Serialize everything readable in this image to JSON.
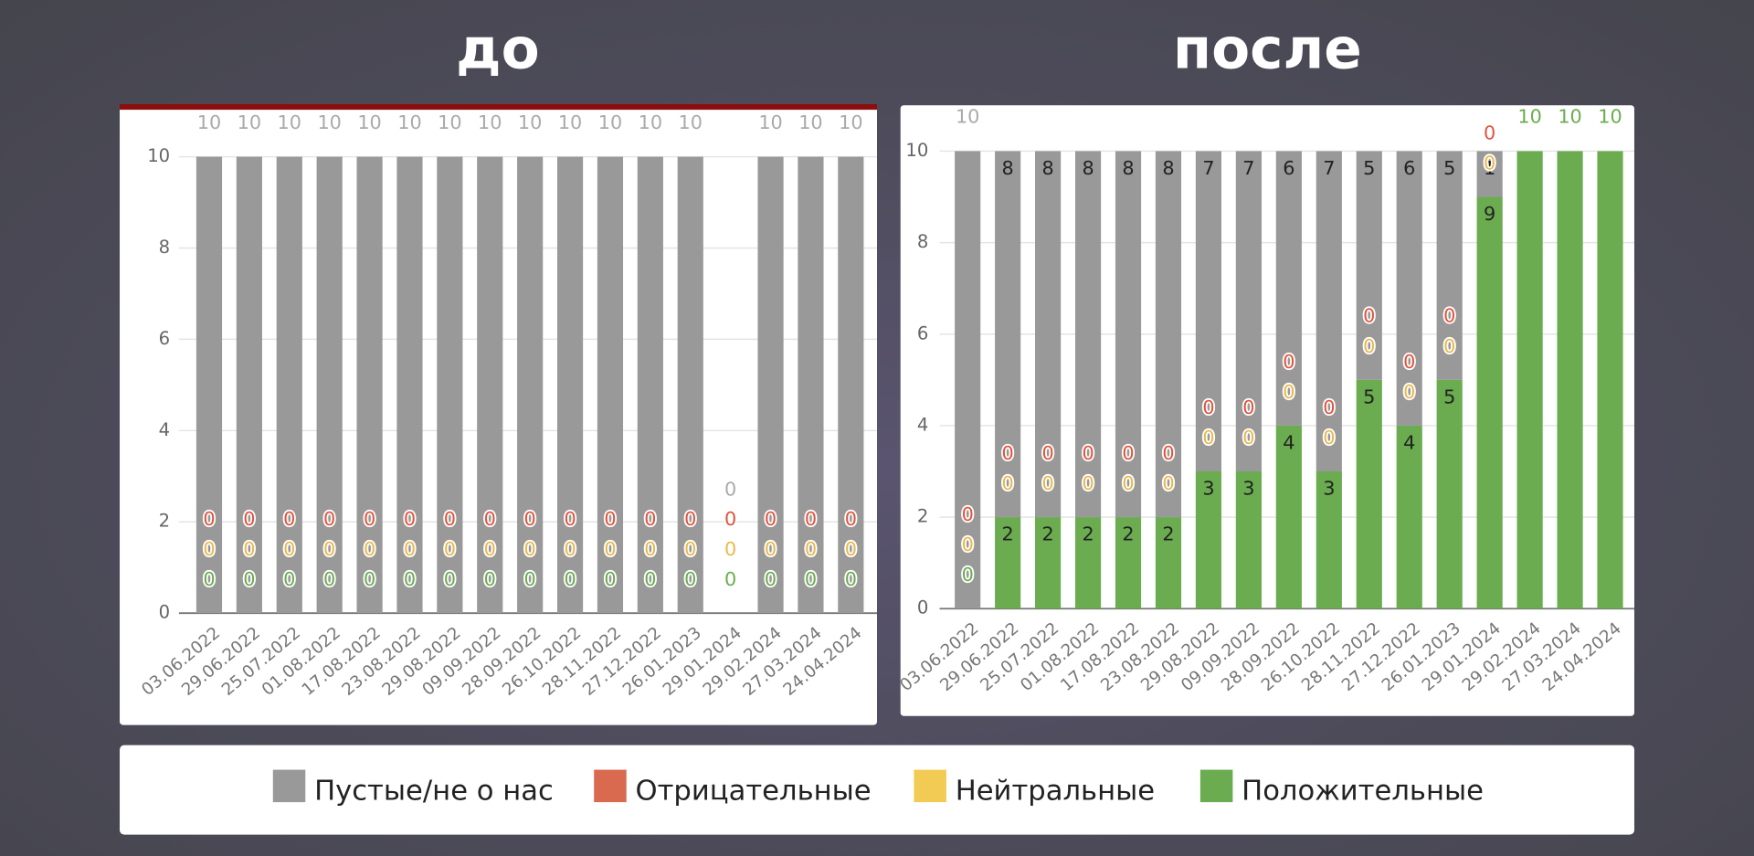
{
  "chart_data": [
    {
      "type": "stacked_bar",
      "title": "до",
      "categories": [
        "03.06.2022",
        "29.06.2022",
        "25.07.2022",
        "01.08.2022",
        "17.08.2022",
        "23.08.2022",
        "29.08.2022",
        "09.09.2022",
        "28.09.2022",
        "26.10.2022",
        "28.11.2022",
        "27.12.2022",
        "26.01.2023",
        "29.01.2024",
        "29.02.2024",
        "27.03.2024",
        "24.04.2024"
      ],
      "series": [
        {
          "name": "Пустые/не о нас",
          "color": "#999999",
          "values": [
            10,
            10,
            10,
            10,
            10,
            10,
            10,
            10,
            10,
            10,
            10,
            10,
            10,
            0,
            10,
            10,
            10
          ]
        },
        {
          "name": "Отрицательные",
          "color": "#d9694f",
          "values": [
            0,
            0,
            0,
            0,
            0,
            0,
            0,
            0,
            0,
            0,
            0,
            0,
            0,
            0,
            0,
            0,
            0
          ]
        },
        {
          "name": "Нейтральные",
          "color": "#f2cb55",
          "values": [
            0,
            0,
            0,
            0,
            0,
            0,
            0,
            0,
            0,
            0,
            0,
            0,
            0,
            0,
            0,
            0,
            0
          ]
        },
        {
          "name": "Положительные",
          "color": "#6aac4f",
          "values": [
            0,
            0,
            0,
            0,
            0,
            0,
            0,
            0,
            0,
            0,
            0,
            0,
            0,
            0,
            0,
            0,
            0
          ]
        }
      ],
      "ylim": [
        0,
        10
      ],
      "yticks": [
        0,
        2,
        4,
        6,
        8,
        10
      ],
      "grid": true
    },
    {
      "type": "stacked_bar",
      "title": "после",
      "categories": [
        "03.06.2022",
        "29.06.2022",
        "25.07.2022",
        "01.08.2022",
        "17.08.2022",
        "23.08.2022",
        "29.08.2022",
        "09.09.2022",
        "28.09.2022",
        "26.10.2022",
        "28.11.2022",
        "27.12.2022",
        "26.01.2023",
        "29.01.2024",
        "29.02.2024",
        "27.03.2024",
        "24.04.2024"
      ],
      "series": [
        {
          "name": "Пустые/не о нас",
          "color": "#999999",
          "values": [
            10,
            8,
            8,
            8,
            8,
            8,
            7,
            7,
            6,
            7,
            5,
            6,
            5,
            1,
            0,
            0,
            0
          ]
        },
        {
          "name": "Отрицательные",
          "color": "#d9694f",
          "values": [
            0,
            0,
            0,
            0,
            0,
            0,
            0,
            0,
            0,
            0,
            0,
            0,
            0,
            0,
            0,
            0,
            0
          ]
        },
        {
          "name": "Нейтральные",
          "color": "#f2cb55",
          "values": [
            0,
            0,
            0,
            0,
            0,
            0,
            0,
            0,
            0,
            0,
            0,
            0,
            0,
            0,
            0,
            0,
            0
          ]
        },
        {
          "name": "Положительные",
          "color": "#6aac4f",
          "values": [
            0,
            2,
            2,
            2,
            2,
            2,
            3,
            3,
            4,
            3,
            5,
            4,
            5,
            9,
            10,
            10,
            10
          ]
        }
      ],
      "ylim": [
        0,
        10
      ],
      "yticks": [
        0,
        2,
        4,
        6,
        8,
        10
      ],
      "grid": true
    }
  ]
}
